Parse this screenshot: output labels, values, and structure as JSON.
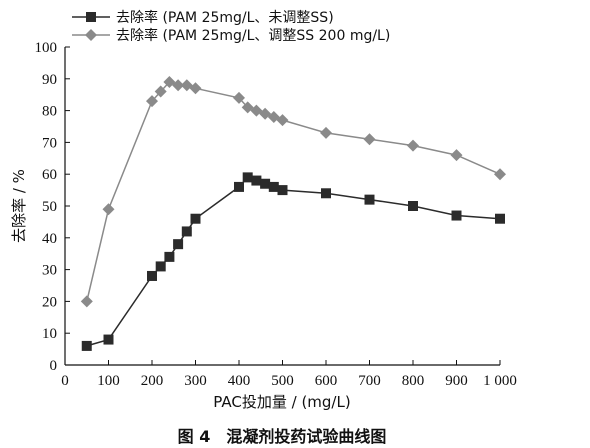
{
  "chart_data": {
    "type": "line",
    "caption": "图 4　混凝剂投药试验曲线图",
    "xlabel": "PAC投加量 / (mg/L)",
    "ylabel": "去除率 / %",
    "xlim": [
      0,
      1000
    ],
    "ylim": [
      0,
      100
    ],
    "xticks": [
      0,
      100,
      200,
      300,
      400,
      500,
      600,
      700,
      800,
      900,
      1000
    ],
    "xtick_labels": [
      "0",
      "100",
      "200",
      "300",
      "400",
      "500",
      "600",
      "700",
      "800",
      "900",
      "1 000"
    ],
    "yticks": [
      0,
      10,
      20,
      30,
      40,
      50,
      60,
      70,
      80,
      90,
      100
    ],
    "ytick_labels": [
      "0",
      "10",
      "20",
      "30",
      "40",
      "50",
      "60",
      "70",
      "80",
      "90",
      "100"
    ],
    "grid": false,
    "legend_position": "top-left",
    "series": [
      {
        "name": "去除率 (PAM 25mg/L、未调整SS)",
        "marker": "square",
        "color": "#2b2b2b",
        "x": [
          50,
          100,
          200,
          220,
          240,
          260,
          280,
          300,
          400,
          420,
          440,
          460,
          480,
          500,
          600,
          700,
          800,
          900,
          1000
        ],
        "y": [
          6,
          8,
          28,
          31,
          34,
          38,
          42,
          46,
          56,
          59,
          58,
          57,
          56,
          55,
          54,
          52,
          50,
          47,
          46
        ]
      },
      {
        "name": "去除率 (PAM 25mg/L、调整SS 200 mg/L)",
        "marker": "diamond",
        "color": "#8a8a8a",
        "x": [
          50,
          100,
          200,
          220,
          240,
          260,
          280,
          300,
          400,
          420,
          440,
          460,
          480,
          500,
          600,
          700,
          800,
          900,
          1000
        ],
        "y": [
          20,
          49,
          83,
          86,
          89,
          88,
          88,
          87,
          84,
          81,
          80,
          79,
          78,
          77,
          73,
          71,
          69,
          66,
          60
        ]
      }
    ]
  }
}
